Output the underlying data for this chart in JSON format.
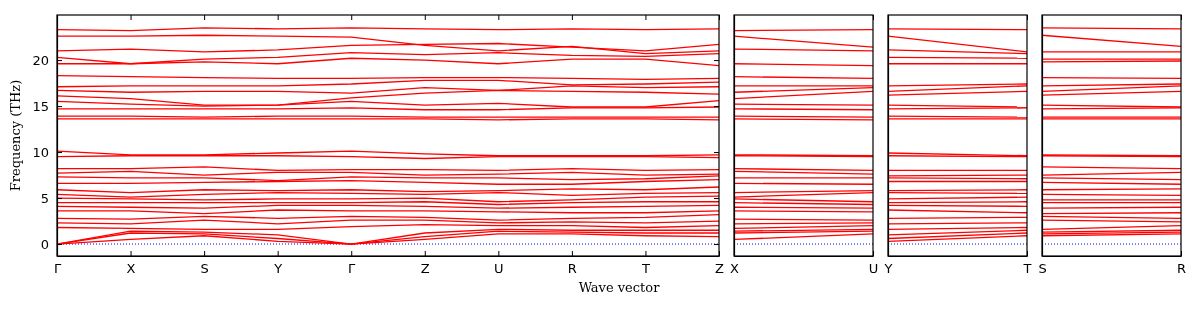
{
  "chart_data": [
    {
      "type": "line",
      "ylabel": "Frequency (THz)",
      "xlabel": "Wave vector",
      "categories": [
        "Γ",
        "X",
        "S",
        "Y",
        "Γ",
        "Z",
        "U",
        "R",
        "T",
        "Z"
      ],
      "ylim": [
        -1.3,
        24.9
      ],
      "yticks": [
        0,
        5,
        10,
        15,
        20
      ],
      "ref_lines": [
        {
          "axis": "y",
          "value": 0,
          "color": "#0000ff",
          "line_style": "dotted"
        }
      ],
      "series": [
        {
          "color": "#ff0000",
          "values": [
            23.3,
            23.2,
            23.5,
            23.4,
            23.5,
            23.4,
            23.3,
            23.4,
            23.3,
            23.4
          ]
        },
        {
          "color": "#ff0000",
          "values": [
            22.6,
            22.6,
            22.7,
            22.6,
            22.5,
            21.6,
            21.0,
            21.5,
            20.7,
            21.0
          ]
        },
        {
          "color": "#ff0000",
          "values": [
            21.0,
            21.2,
            20.9,
            21.1,
            21.6,
            21.7,
            21.8,
            21.4,
            21.0,
            21.7
          ]
        },
        {
          "color": "#ff0000",
          "values": [
            20.3,
            19.6,
            20.1,
            20.3,
            20.8,
            20.6,
            20.8,
            20.5,
            20.4,
            20.7
          ]
        },
        {
          "color": "#ff0000",
          "values": [
            19.6,
            19.6,
            19.8,
            19.6,
            20.2,
            20.0,
            19.6,
            20.1,
            20.1,
            19.4
          ]
        },
        {
          "color": "#ff0000",
          "values": [
            18.3,
            18.2,
            18.1,
            18.0,
            18.0,
            18.1,
            18.1,
            18.0,
            17.9,
            18.0
          ]
        },
        {
          "color": "#ff0000",
          "values": [
            17.1,
            17.2,
            17.2,
            17.2,
            17.4,
            17.8,
            17.8,
            17.3,
            17.4,
            17.6
          ]
        },
        {
          "color": "#ff0000",
          "values": [
            16.7,
            16.5,
            16.6,
            16.6,
            16.4,
            17.0,
            16.7,
            17.2,
            17.0,
            17.1
          ]
        },
        {
          "color": "#ff0000",
          "values": [
            16.1,
            15.8,
            15.1,
            15.1,
            15.9,
            16.4,
            16.7,
            16.6,
            16.5,
            16.3
          ]
        },
        {
          "color": "#ff0000",
          "values": [
            15.5,
            15.2,
            15.0,
            15.1,
            15.5,
            15.1,
            15.3,
            14.9,
            14.9,
            15.6
          ]
        },
        {
          "color": "#ff0000",
          "values": [
            14.7,
            14.7,
            14.7,
            14.7,
            14.8,
            14.6,
            14.6,
            14.8,
            14.8,
            14.9
          ]
        },
        {
          "color": "#ff0000",
          "values": [
            13.9,
            13.9,
            13.8,
            13.9,
            13.9,
            13.8,
            13.8,
            13.8,
            13.8,
            13.8
          ]
        },
        {
          "color": "#ff0000",
          "values": [
            13.6,
            13.6,
            13.6,
            13.6,
            13.6,
            13.6,
            13.5,
            13.6,
            13.6,
            13.5
          ]
        },
        {
          "color": "#ff0000",
          "values": [
            10.1,
            9.7,
            9.7,
            9.9,
            10.1,
            9.8,
            9.6,
            9.6,
            9.6,
            9.7
          ]
        },
        {
          "color": "#ff0000",
          "values": [
            9.5,
            9.6,
            9.6,
            9.6,
            9.5,
            9.3,
            9.5,
            9.5,
            9.5,
            9.4
          ]
        },
        {
          "color": "#ff0000",
          "values": [
            8.2,
            8.2,
            8.4,
            8.0,
            8.1,
            8.1,
            8.0,
            8.2,
            8.0,
            8.1
          ]
        },
        {
          "color": "#ff0000",
          "values": [
            7.7,
            7.9,
            7.5,
            7.8,
            7.8,
            7.5,
            7.6,
            7.8,
            7.5,
            7.6
          ]
        },
        {
          "color": "#ff0000",
          "values": [
            7.3,
            7.2,
            7.2,
            6.9,
            7.3,
            7.2,
            7.2,
            7.0,
            7.1,
            7.4
          ]
        },
        {
          "color": "#ff0000",
          "values": [
            6.6,
            6.6,
            6.7,
            6.8,
            6.9,
            6.7,
            6.5,
            6.5,
            6.8,
            7.0
          ]
        },
        {
          "color": "#ff0000",
          "values": [
            5.9,
            5.6,
            5.9,
            5.8,
            5.9,
            5.7,
            5.8,
            6.0,
            5.9,
            6.2
          ]
        },
        {
          "color": "#ff0000",
          "values": [
            5.4,
            5.1,
            5.4,
            5.6,
            5.5,
            5.4,
            5.6,
            5.3,
            5.5,
            5.6
          ]
        },
        {
          "color": "#ff0000",
          "values": [
            5.0,
            4.9,
            4.8,
            4.9,
            4.9,
            5.0,
            4.6,
            4.8,
            5.1,
            5.2
          ]
        },
        {
          "color": "#ff0000",
          "values": [
            4.5,
            4.5,
            4.5,
            4.5,
            4.5,
            4.6,
            4.3,
            4.5,
            4.6,
            4.6
          ]
        },
        {
          "color": "#ff0000",
          "values": [
            4.1,
            4.0,
            3.9,
            4.2,
            4.2,
            4.1,
            3.9,
            4.0,
            4.1,
            4.2
          ]
        },
        {
          "color": "#ff0000",
          "values": [
            3.6,
            3.6,
            3.3,
            3.7,
            3.6,
            3.6,
            3.5,
            3.4,
            3.4,
            3.6
          ]
        },
        {
          "color": "#ff0000",
          "values": [
            2.8,
            2.7,
            3.0,
            2.8,
            3.0,
            2.9,
            2.6,
            2.8,
            2.9,
            3.2
          ]
        },
        {
          "color": "#ff0000",
          "values": [
            2.3,
            2.2,
            2.6,
            2.2,
            2.6,
            2.6,
            2.3,
            2.4,
            2.3,
            2.5
          ]
        },
        {
          "color": "#ff0000",
          "values": [
            1.8,
            1.7,
            1.6,
            1.6,
            1.9,
            2.1,
            2.0,
            2.0,
            1.8,
            2.0
          ]
        },
        {
          "color": "#ff0000",
          "values": [
            0,
            1.4,
            1.3,
            1.0,
            0,
            1.2,
            1.6,
            1.5,
            1.5,
            1.5
          ]
        },
        {
          "color": "#ff0000",
          "values": [
            0,
            1.2,
            1.1,
            0.6,
            0,
            0.8,
            1.4,
            1.3,
            1.2,
            1.2
          ]
        },
        {
          "color": "#ff0000",
          "values": [
            0,
            0.5,
            0.9,
            0.3,
            0,
            0.5,
            1.1,
            1.1,
            0.9,
            0.8
          ]
        }
      ]
    },
    {
      "type": "line",
      "categories": [
        "X",
        "U"
      ],
      "ylim": [
        -1.3,
        24.9
      ],
      "yticks": [
        0,
        5,
        10,
        15,
        20
      ],
      "tick_labels": "x",
      "ref_lines": [
        {
          "axis": "y",
          "value": 0,
          "color": "#0000ff",
          "line_style": "dotted"
        }
      ],
      "series": [
        {
          "color": "#ff0000",
          "values": [
            23.2,
            23.3
          ]
        },
        {
          "color": "#ff0000",
          "values": [
            22.6,
            21.4
          ]
        },
        {
          "color": "#ff0000",
          "values": [
            21.2,
            21.0
          ]
        },
        {
          "color": "#ff0000",
          "values": [
            19.6,
            19.4
          ]
        },
        {
          "color": "#ff0000",
          "values": [
            18.2,
            18.0
          ]
        },
        {
          "color": "#ff0000",
          "values": [
            17.2,
            17.2
          ]
        },
        {
          "color": "#ff0000",
          "values": [
            16.5,
            17.0
          ]
        },
        {
          "color": "#ff0000",
          "values": [
            15.8,
            16.6
          ]
        },
        {
          "color": "#ff0000",
          "values": [
            15.2,
            15.1
          ]
        },
        {
          "color": "#ff0000",
          "values": [
            14.7,
            14.6
          ]
        },
        {
          "color": "#ff0000",
          "values": [
            13.9,
            13.8
          ]
        },
        {
          "color": "#ff0000",
          "values": [
            13.6,
            13.5
          ]
        },
        {
          "color": "#ff0000",
          "values": [
            9.7,
            9.6
          ]
        },
        {
          "color": "#ff0000",
          "values": [
            9.6,
            9.5
          ]
        },
        {
          "color": "#ff0000",
          "values": [
            8.2,
            8.0
          ]
        },
        {
          "color": "#ff0000",
          "values": [
            7.9,
            7.6
          ]
        },
        {
          "color": "#ff0000",
          "values": [
            7.2,
            7.2
          ]
        },
        {
          "color": "#ff0000",
          "values": [
            6.6,
            6.5
          ]
        },
        {
          "color": "#ff0000",
          "values": [
            5.6,
            5.8
          ]
        },
        {
          "color": "#ff0000",
          "values": [
            5.1,
            5.6
          ]
        },
        {
          "color": "#ff0000",
          "values": [
            4.9,
            4.6
          ]
        },
        {
          "color": "#ff0000",
          "values": [
            4.5,
            4.3
          ]
        },
        {
          "color": "#ff0000",
          "values": [
            4.0,
            3.9
          ]
        },
        {
          "color": "#ff0000",
          "values": [
            3.6,
            3.5
          ]
        },
        {
          "color": "#ff0000",
          "values": [
            2.7,
            2.6
          ]
        },
        {
          "color": "#ff0000",
          "values": [
            2.2,
            2.3
          ]
        },
        {
          "color": "#ff0000",
          "values": [
            1.7,
            2.0
          ]
        },
        {
          "color": "#ff0000",
          "values": [
            1.4,
            1.6
          ]
        },
        {
          "color": "#ff0000",
          "values": [
            1.2,
            1.4
          ]
        },
        {
          "color": "#ff0000",
          "values": [
            0.5,
            1.1
          ]
        }
      ]
    },
    {
      "type": "line",
      "categories": [
        "Y",
        "T"
      ],
      "ylim": [
        -1.3,
        24.9
      ],
      "yticks": [
        0,
        5,
        10,
        15,
        20
      ],
      "tick_labels": "x",
      "ref_lines": [
        {
          "axis": "y",
          "value": 0,
          "color": "#0000ff",
          "line_style": "dotted"
        }
      ],
      "series": [
        {
          "color": "#ff0000",
          "values": [
            23.4,
            23.3
          ]
        },
        {
          "color": "#ff0000",
          "values": [
            22.6,
            20.9
          ]
        },
        {
          "color": "#ff0000",
          "values": [
            21.1,
            20.7
          ]
        },
        {
          "color": "#ff0000",
          "values": [
            20.3,
            20.2
          ]
        },
        {
          "color": "#ff0000",
          "values": [
            19.6,
            19.6
          ]
        },
        {
          "color": "#ff0000",
          "values": [
            17.2,
            17.4
          ]
        },
        {
          "color": "#ff0000",
          "values": [
            16.6,
            17.2
          ]
        },
        {
          "color": "#ff0000",
          "values": [
            16.2,
            16.6
          ]
        },
        {
          "color": "#ff0000",
          "values": [
            15.1,
            14.9
          ]
        },
        {
          "color": "#ff0000",
          "values": [
            14.7,
            14.8
          ]
        },
        {
          "color": "#ff0000",
          "values": [
            13.9,
            13.8
          ]
        },
        {
          "color": "#ff0000",
          "values": [
            13.6,
            13.6
          ]
        },
        {
          "color": "#ff0000",
          "values": [
            9.9,
            9.6
          ]
        },
        {
          "color": "#ff0000",
          "values": [
            9.6,
            9.5
          ]
        },
        {
          "color": "#ff0000",
          "values": [
            8.0,
            8.0
          ]
        },
        {
          "color": "#ff0000",
          "values": [
            7.4,
            7.5
          ]
        },
        {
          "color": "#ff0000",
          "values": [
            7.2,
            7.1
          ]
        },
        {
          "color": "#ff0000",
          "values": [
            6.8,
            6.8
          ]
        },
        {
          "color": "#ff0000",
          "values": [
            5.8,
            5.9
          ]
        },
        {
          "color": "#ff0000",
          "values": [
            5.6,
            5.5
          ]
        },
        {
          "color": "#ff0000",
          "values": [
            4.9,
            5.1
          ]
        },
        {
          "color": "#ff0000",
          "values": [
            4.5,
            4.6
          ]
        },
        {
          "color": "#ff0000",
          "values": [
            4.2,
            4.1
          ]
        },
        {
          "color": "#ff0000",
          "values": [
            3.7,
            3.4
          ]
        },
        {
          "color": "#ff0000",
          "values": [
            2.8,
            2.9
          ]
        },
        {
          "color": "#ff0000",
          "values": [
            2.2,
            2.3
          ]
        },
        {
          "color": "#ff0000",
          "values": [
            1.6,
            1.8
          ]
        },
        {
          "color": "#ff0000",
          "values": [
            1.0,
            1.5
          ]
        },
        {
          "color": "#ff0000",
          "values": [
            0.6,
            1.2
          ]
        },
        {
          "color": "#ff0000",
          "values": [
            0.3,
            0.9
          ]
        }
      ]
    },
    {
      "type": "line",
      "categories": [
        "S",
        "R"
      ],
      "ylim": [
        -1.3,
        24.9
      ],
      "yticks": [
        0,
        5,
        10,
        15,
        20
      ],
      "tick_labels": "x",
      "ref_lines": [
        {
          "axis": "y",
          "value": 0,
          "color": "#0000ff",
          "line_style": "dotted"
        }
      ],
      "series": [
        {
          "color": "#ff0000",
          "values": [
            23.5,
            23.4
          ]
        },
        {
          "color": "#ff0000",
          "values": [
            22.7,
            21.5
          ]
        },
        {
          "color": "#ff0000",
          "values": [
            20.9,
            20.9
          ]
        },
        {
          "color": "#ff0000",
          "values": [
            20.1,
            20.1
          ]
        },
        {
          "color": "#ff0000",
          "values": [
            19.8,
            19.9
          ]
        },
        {
          "color": "#ff0000",
          "values": [
            18.1,
            18.0
          ]
        },
        {
          "color": "#ff0000",
          "values": [
            17.2,
            17.4
          ]
        },
        {
          "color": "#ff0000",
          "values": [
            16.6,
            17.2
          ]
        },
        {
          "color": "#ff0000",
          "values": [
            16.2,
            16.6
          ]
        },
        {
          "color": "#ff0000",
          "values": [
            15.1,
            14.9
          ]
        },
        {
          "color": "#ff0000",
          "values": [
            14.7,
            14.8
          ]
        },
        {
          "color": "#ff0000",
          "values": [
            13.8,
            13.8
          ]
        },
        {
          "color": "#ff0000",
          "values": [
            13.6,
            13.6
          ]
        },
        {
          "color": "#ff0000",
          "values": [
            9.7,
            9.6
          ]
        },
        {
          "color": "#ff0000",
          "values": [
            9.6,
            9.5
          ]
        },
        {
          "color": "#ff0000",
          "values": [
            8.4,
            8.2
          ]
        },
        {
          "color": "#ff0000",
          "values": [
            7.5,
            7.8
          ]
        },
        {
          "color": "#ff0000",
          "values": [
            7.2,
            7.0
          ]
        },
        {
          "color": "#ff0000",
          "values": [
            6.7,
            6.5
          ]
        },
        {
          "color": "#ff0000",
          "values": [
            5.9,
            6.0
          ]
        },
        {
          "color": "#ff0000",
          "values": [
            5.4,
            5.3
          ]
        },
        {
          "color": "#ff0000",
          "values": [
            4.8,
            4.8
          ]
        },
        {
          "color": "#ff0000",
          "values": [
            4.5,
            4.5
          ]
        },
        {
          "color": "#ff0000",
          "values": [
            3.9,
            4.0
          ]
        },
        {
          "color": "#ff0000",
          "values": [
            3.3,
            3.4
          ]
        },
        {
          "color": "#ff0000",
          "values": [
            3.0,
            2.8
          ]
        },
        {
          "color": "#ff0000",
          "values": [
            2.6,
            2.4
          ]
        },
        {
          "color": "#ff0000",
          "values": [
            1.6,
            2.0
          ]
        },
        {
          "color": "#ff0000",
          "values": [
            1.3,
            1.5
          ]
        },
        {
          "color": "#ff0000",
          "values": [
            1.1,
            1.3
          ]
        },
        {
          "color": "#ff0000",
          "values": [
            0.9,
            1.1
          ]
        }
      ]
    }
  ]
}
